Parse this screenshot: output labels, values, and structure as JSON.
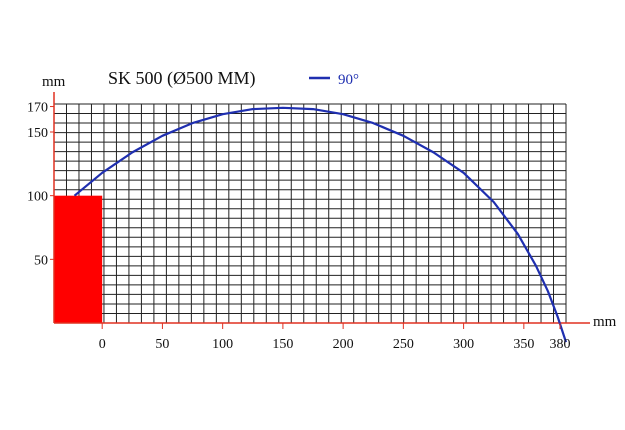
{
  "chart_data": {
    "type": "line",
    "title": "SK 500 (Ø500 MM)",
    "ylabel": "mm",
    "xlabel": "mm",
    "xlim": [
      -40,
      385
    ],
    "ylim": [
      0,
      172
    ],
    "xticks": [
      0,
      50,
      100,
      150,
      200,
      250,
      300,
      350,
      380
    ],
    "yticks": [
      50,
      100,
      150,
      170
    ],
    "grid": true,
    "legend": "top",
    "colors": {
      "series": "#1f2fb0",
      "block": "#ff0000",
      "axis": "#e03020"
    },
    "series": [
      {
        "name": "90°",
        "x": [
          -23,
          0,
          25,
          50,
          75,
          100,
          125,
          150,
          175,
          200,
          225,
          250,
          275,
          300,
          325,
          345,
          360,
          370,
          378,
          385
        ],
        "y": [
          100,
          118,
          134,
          147,
          157,
          164,
          168,
          169,
          168,
          164,
          157,
          147,
          134,
          118,
          95,
          70,
          45,
          25,
          5,
          -15
        ]
      }
    ],
    "block": {
      "x0": -40,
      "x1": 0,
      "y0": 0,
      "y1": 100
    }
  }
}
